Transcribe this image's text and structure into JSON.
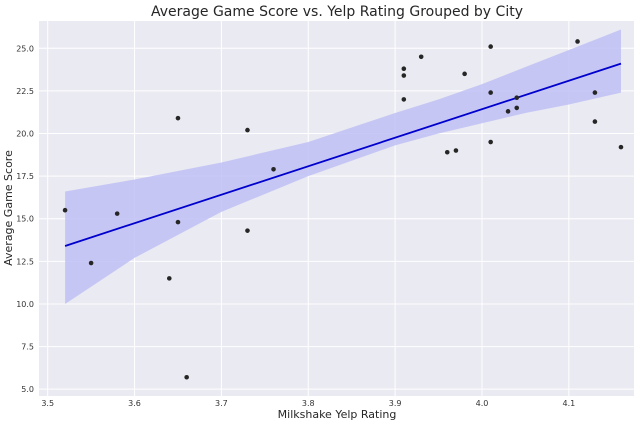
{
  "chart_data": {
    "type": "scatter",
    "title": "Average Game Score vs. Yelp Rating Grouped by City",
    "xlabel": "Milkshake Yelp Rating",
    "ylabel": "Average Game Score",
    "xlim": [
      3.49,
      4.175
    ],
    "ylim": [
      4.6,
      26.6
    ],
    "xticks": [
      3.5,
      3.6,
      3.7,
      3.8,
      3.9,
      4.0,
      4.1
    ],
    "xtick_labels": [
      "3.5",
      "3.6",
      "3.7",
      "3.8",
      "3.9",
      "4.0",
      "4.1"
    ],
    "yticks": [
      5.0,
      7.5,
      10.0,
      12.5,
      15.0,
      17.5,
      20.0,
      22.5,
      25.0
    ],
    "ytick_labels": [
      "5.0",
      "7.5",
      "10.0",
      "12.5",
      "15.0",
      "17.5",
      "20.0",
      "22.5",
      "25.0"
    ],
    "grid": true,
    "points": [
      {
        "x": 3.52,
        "y": 15.5
      },
      {
        "x": 3.55,
        "y": 12.4
      },
      {
        "x": 3.58,
        "y": 15.3
      },
      {
        "x": 3.64,
        "y": 11.5
      },
      {
        "x": 3.65,
        "y": 20.9
      },
      {
        "x": 3.65,
        "y": 14.8
      },
      {
        "x": 3.66,
        "y": 5.7
      },
      {
        "x": 3.73,
        "y": 20.2
      },
      {
        "x": 3.73,
        "y": 14.3
      },
      {
        "x": 3.76,
        "y": 17.9
      },
      {
        "x": 3.91,
        "y": 23.8
      },
      {
        "x": 3.91,
        "y": 23.4
      },
      {
        "x": 3.91,
        "y": 22.0
      },
      {
        "x": 3.93,
        "y": 24.5
      },
      {
        "x": 3.96,
        "y": 18.9
      },
      {
        "x": 3.97,
        "y": 19.0
      },
      {
        "x": 3.98,
        "y": 23.5
      },
      {
        "x": 4.01,
        "y": 25.1
      },
      {
        "x": 4.01,
        "y": 22.4
      },
      {
        "x": 4.01,
        "y": 19.5
      },
      {
        "x": 4.03,
        "y": 21.3
      },
      {
        "x": 4.04,
        "y": 22.1
      },
      {
        "x": 4.04,
        "y": 21.5
      },
      {
        "x": 4.11,
        "y": 25.4
      },
      {
        "x": 4.13,
        "y": 22.4
      },
      {
        "x": 4.13,
        "y": 20.7
      },
      {
        "x": 4.16,
        "y": 19.2
      }
    ],
    "regression": {
      "x": [
        3.52,
        4.16
      ],
      "y": [
        13.4,
        24.1
      ]
    },
    "confidence_band": {
      "x": [
        3.52,
        3.6,
        3.7,
        3.8,
        3.9,
        3.95,
        4.0,
        4.05,
        4.1,
        4.16
      ],
      "lower": [
        10.0,
        12.7,
        15.4,
        17.5,
        19.3,
        20.0,
        20.6,
        21.2,
        21.7,
        22.4
      ],
      "upper": [
        16.6,
        17.3,
        18.3,
        19.5,
        21.2,
        22.0,
        22.9,
        23.9,
        24.9,
        26.1
      ]
    },
    "colors": {
      "background": "#eaeaf2",
      "grid": "#ffffff",
      "points": "#262626",
      "line": "#0000cd",
      "band": "#c0c0f6"
    }
  }
}
